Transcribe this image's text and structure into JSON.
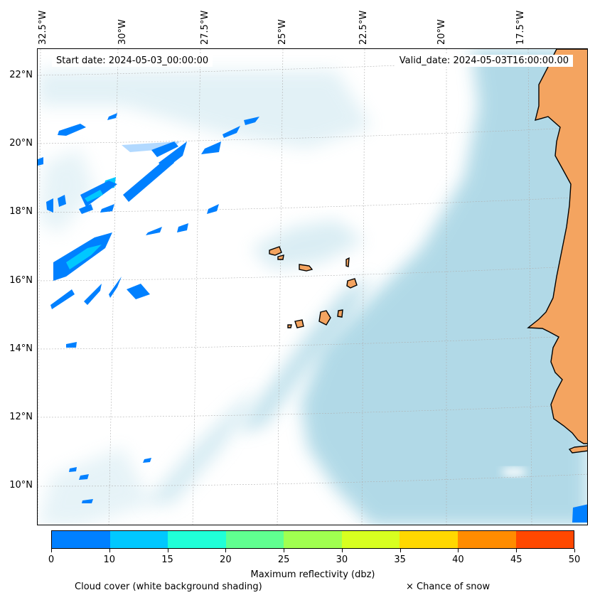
{
  "map": {
    "start_date": "Start date: 2024-05-03_00:00:00",
    "valid_date": "Valid_date: 2024-05-03T16:00:00.00",
    "lon_labels": [
      "32.5°W",
      "30°W",
      "27.5°W",
      "25°W",
      "22.5°W",
      "20°W",
      "17.5°W"
    ],
    "lat_labels": [
      "22°N",
      "20°N",
      "18°N",
      "16°N",
      "14°N",
      "12°N",
      "10°N"
    ],
    "colors": {
      "land": "#f4a460",
      "sea_cloud": "#add8e6",
      "coast": "#000000"
    }
  },
  "colorbar": {
    "title": "Maximum reflectivity (dbz)",
    "ticks": [
      "0",
      "10",
      "15",
      "20",
      "25",
      "30",
      "35",
      "40",
      "45",
      "50"
    ],
    "colors": [
      "#0080ff",
      "#00c8ff",
      "#20ffd8",
      "#60ff90",
      "#a0ff50",
      "#d8ff20",
      "#ffd800",
      "#ff8c00",
      "#ff4800"
    ]
  },
  "legend": {
    "cloud_cover": "Cloud cover (white background shading)",
    "snow": "× Chance of snow"
  }
}
